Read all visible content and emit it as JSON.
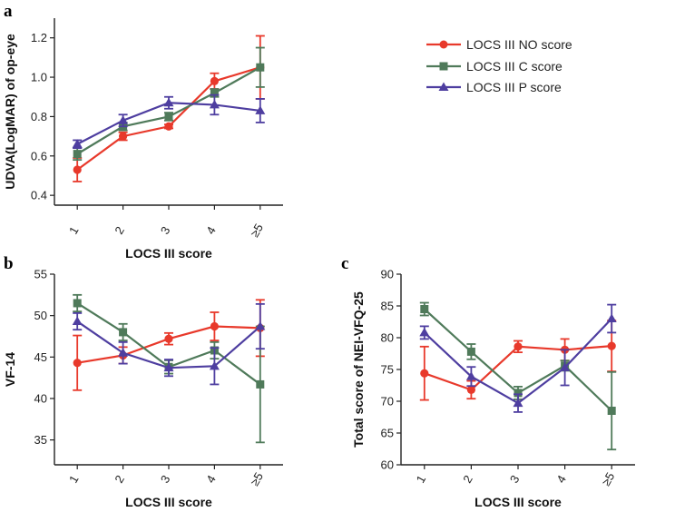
{
  "figure": {
    "legend": {
      "entries": [
        {
          "label": "LOCS III NO score",
          "color": "#e8392b",
          "marker": "circle"
        },
        {
          "label": "LOCS III C score",
          "color": "#4f7a5a",
          "marker": "square"
        },
        {
          "label": "LOCS III P score",
          "color": "#4e3ea0",
          "marker": "triangle"
        }
      ],
      "placement": "top-right"
    }
  },
  "chart_data": [
    {
      "id": "a",
      "panel_letter": "a",
      "type": "line",
      "title": "",
      "xlabel": "LOCS III score",
      "ylabel": "UDVA(LogMAR) of  op-eye",
      "categories": [
        "1",
        "2",
        "3",
        "4",
        "≥5"
      ],
      "ylim": [
        0.35,
        1.3
      ],
      "yticks": [
        0.4,
        0.6,
        0.8,
        1.0,
        1.2
      ],
      "ytick_labels": [
        "0.4",
        "0.6",
        "0.8",
        "1.0",
        "1.2"
      ],
      "series": [
        {
          "name": "LOCS III NO score",
          "color": "#e8392b",
          "marker": "circle",
          "values": [
            0.53,
            0.7,
            0.75,
            0.98,
            1.05
          ],
          "errors": [
            0.06,
            0.02,
            0.01,
            0.04,
            0.16
          ]
        },
        {
          "name": "LOCS III C score",
          "color": "#4f7a5a",
          "marker": "square",
          "values": [
            0.61,
            0.75,
            0.8,
            0.92,
            1.05
          ],
          "errors": [
            0.03,
            0.02,
            0.02,
            0.02,
            0.1
          ]
        },
        {
          "name": "LOCS III P score",
          "color": "#4e3ea0",
          "marker": "triangle",
          "values": [
            0.66,
            0.78,
            0.87,
            0.86,
            0.83
          ],
          "errors": [
            0.02,
            0.03,
            0.03,
            0.05,
            0.06
          ]
        }
      ]
    },
    {
      "id": "b",
      "panel_letter": "b",
      "type": "line",
      "title": "",
      "xlabel": "LOCS III score",
      "ylabel": "VF-14",
      "categories": [
        "1",
        "2",
        "3",
        "4",
        "≥5"
      ],
      "ylim": [
        32,
        55
      ],
      "yticks": [
        35,
        40,
        45,
        50,
        55
      ],
      "ytick_labels": [
        "35",
        "40",
        "45",
        "50",
        "55"
      ],
      "series": [
        {
          "name": "LOCS III NO score",
          "color": "#e8392b",
          "marker": "circle",
          "values": [
            44.3,
            45.2,
            47.2,
            48.7,
            48.5
          ],
          "errors": [
            3.3,
            1.0,
            0.7,
            1.7,
            3.4
          ]
        },
        {
          "name": "LOCS III C score",
          "color": "#4f7a5a",
          "marker": "square",
          "values": [
            51.5,
            48.0,
            43.8,
            45.8,
            41.7
          ],
          "errors": [
            1.0,
            1.0,
            0.8,
            1.0,
            7.0
          ]
        },
        {
          "name": "LOCS III P score",
          "color": "#4e3ea0",
          "marker": "triangle",
          "values": [
            49.3,
            45.5,
            43.7,
            43.9,
            48.7
          ],
          "errors": [
            1.0,
            1.3,
            1.0,
            2.2,
            2.7
          ]
        }
      ]
    },
    {
      "id": "c",
      "panel_letter": "c",
      "type": "line",
      "title": "",
      "xlabel": "LOCS III score",
      "ylabel": "Total score of NEI-VFQ-25",
      "categories": [
        "1",
        "2",
        "3",
        "4",
        "≥5"
      ],
      "ylim": [
        60,
        90
      ],
      "yticks": [
        60,
        65,
        70,
        75,
        80,
        85,
        90
      ],
      "ytick_labels": [
        "60",
        "65",
        "70",
        "75",
        "80",
        "85",
        "90"
      ],
      "series": [
        {
          "name": "LOCS III NO score",
          "color": "#e8392b",
          "marker": "circle",
          "values": [
            74.4,
            71.8,
            78.6,
            78.1,
            78.7
          ],
          "errors": [
            4.2,
            1.4,
            0.9,
            1.7,
            4.0
          ]
        },
        {
          "name": "LOCS III C score",
          "color": "#4f7a5a",
          "marker": "square",
          "values": [
            84.5,
            77.8,
            71.3,
            75.6,
            68.5
          ],
          "errors": [
            1.0,
            1.2,
            1.0,
            0.8,
            6.1
          ]
        },
        {
          "name": "LOCS III P score",
          "color": "#4e3ea0",
          "marker": "triangle",
          "values": [
            80.8,
            73.9,
            69.7,
            75.3,
            83.0
          ],
          "errors": [
            1.0,
            1.5,
            1.4,
            2.8,
            2.2
          ]
        }
      ]
    }
  ]
}
